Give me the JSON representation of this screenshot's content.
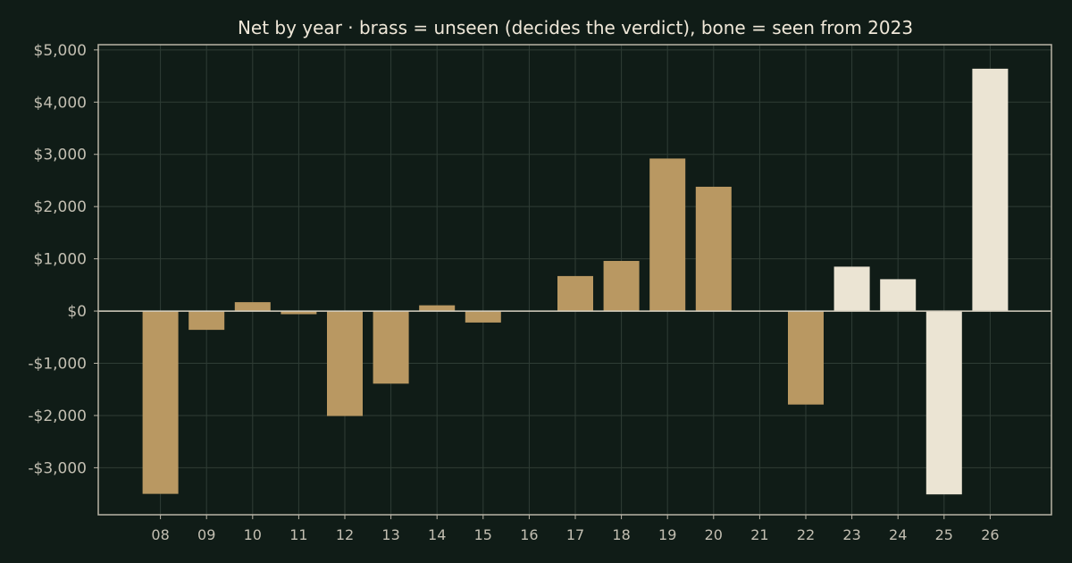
{
  "chart_data": {
    "type": "bar",
    "title": "Net by year  ·  brass = unseen (decides the verdict), bone = seen from 2023",
    "xlabel": "",
    "ylabel": "",
    "categories": [
      "08",
      "09",
      "10",
      "11",
      "12",
      "13",
      "14",
      "15",
      "16",
      "17",
      "18",
      "19",
      "20",
      "21",
      "22",
      "23",
      "24",
      "25",
      "26"
    ],
    "series": [
      {
        "values": [
          -3500,
          -360,
          170,
          -60,
          -2010,
          -1390,
          110,
          -220,
          0,
          670,
          960,
          2920,
          2380,
          0,
          -1790,
          850,
          610,
          -3510,
          4640
        ],
        "colors": [
          "#b99862",
          "#b99862",
          "#b99862",
          "#b99862",
          "#b99862",
          "#b99862",
          "#b99862",
          "#b99862",
          "#b99862",
          "#b99862",
          "#b99862",
          "#b99862",
          "#b99862",
          "#b99862",
          "#b99862",
          "#ebe4d3",
          "#ebe4d3",
          "#ebe4d3",
          "#ebe4d3"
        ]
      }
    ],
    "ylim": [
      -3900,
      5100
    ],
    "yticks": [
      -3000,
      -2000,
      -1000,
      0,
      1000,
      2000,
      3000,
      4000,
      5000
    ],
    "ytick_labels": [
      "-$3,000",
      "-$2,000",
      "-$1,000",
      "$0",
      "$1,000",
      "$2,000",
      "$3,000",
      "$4,000",
      "$5,000"
    ],
    "grid": true,
    "legend": "none"
  },
  "style": {
    "background": "#101c17",
    "grid_color": "#2f3d35",
    "axis_color": "#b9b4a6",
    "zero_line_color": "#d8d1c2"
  }
}
